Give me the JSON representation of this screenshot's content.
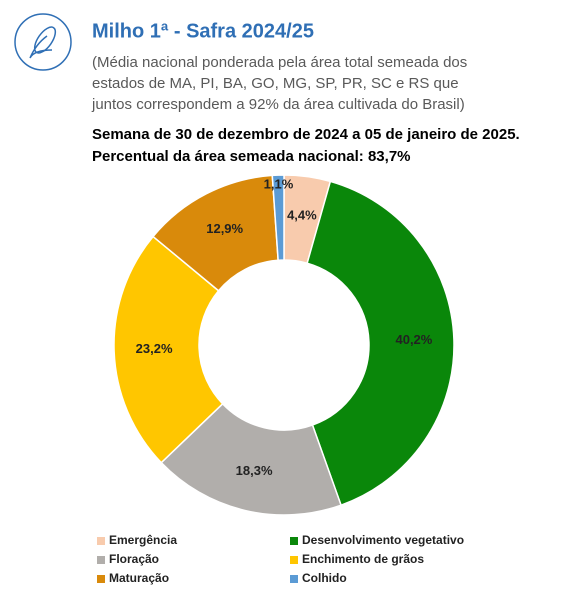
{
  "chart_data": {
    "type": "donut",
    "title": "Milho 1ª - Safra 2024/25",
    "subtitle": [
      "(Média nacional ponderada pela área total semeada dos",
      "estados de MA, PI, BA, GO, MG, SP, PR, SC e RS que",
      "juntos correspondem a 92% da área cultivada do Brasil)"
    ],
    "headings": [
      "Semana de 30 de dezembro de 2024 a 05 de janeiro de 2025.",
      "Percentual da área semeada nacional: 83,7%"
    ],
    "categories": [
      "Emergência",
      "Desenvolvimento vegetativo",
      "Floração",
      "Enchimento de grãos",
      "Maturação",
      "Colhido"
    ],
    "values": [
      4.4,
      40.2,
      18.3,
      23.2,
      12.9,
      1.1
    ],
    "value_labels": [
      "4,4%",
      "40,2%",
      "18,3%",
      "23,2%",
      "12,9%",
      "1,1%"
    ],
    "colors": [
      "#f8cbad",
      "#0a870a",
      "#b1aeab",
      "#ffc600",
      "#d98a0b",
      "#5b9bd5"
    ]
  }
}
